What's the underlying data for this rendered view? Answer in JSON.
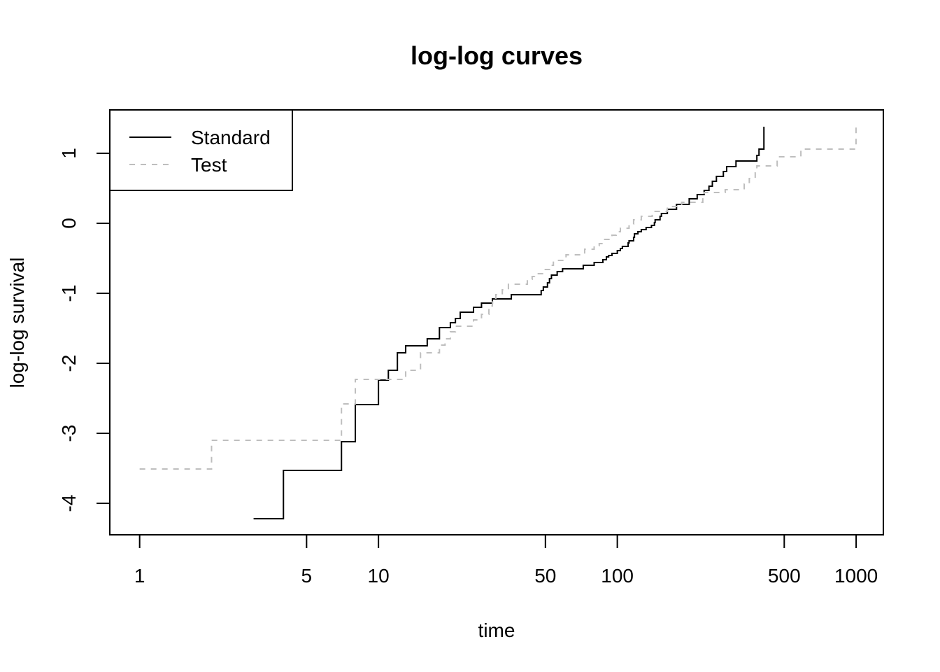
{
  "chart_data": {
    "type": "line",
    "title": "log-log curves",
    "xlabel": "time",
    "ylabel": "log-log survival",
    "x_scale": "log",
    "xlim": [
      0.75,
      1300
    ],
    "ylim": [
      -4.45,
      1.62
    ],
    "x_ticks": [
      1,
      5,
      10,
      50,
      100,
      500,
      1000
    ],
    "x_tick_labels": [
      "1",
      "5",
      "10",
      "50",
      "100",
      "500",
      "1000"
    ],
    "y_ticks": [
      -4,
      -3,
      -2,
      -1,
      0,
      1
    ],
    "y_tick_labels": [
      "-4",
      "-3",
      "-2",
      "-1",
      "0",
      "1"
    ],
    "grid": false,
    "legend_position": "top-left",
    "series": [
      {
        "name": "Standard",
        "color": "#000000",
        "dash": "solid",
        "x": [
          3,
          4,
          7,
          8,
          10,
          11,
          12,
          13,
          16,
          18,
          20,
          21,
          22,
          25,
          27,
          30,
          36,
          48,
          49,
          51,
          52,
          53,
          56,
          59,
          72,
          80,
          87,
          90,
          92,
          95,
          100,
          103,
          105,
          111,
          112,
          117,
          118,
          122,
          126,
          132,
          139,
          143,
          144,
          151,
          153,
          162,
          177,
          200,
          216,
          231,
          242,
          250,
          260,
          278,
          287,
          314,
          384,
          392,
          411,
          411
        ],
        "y": [
          -4.22,
          -3.53,
          -3.12,
          -2.59,
          -2.24,
          -2.1,
          -1.85,
          -1.75,
          -1.65,
          -1.49,
          -1.42,
          -1.36,
          -1.27,
          -1.2,
          -1.14,
          -1.08,
          -1.02,
          -0.96,
          -0.91,
          -0.85,
          -0.79,
          -0.74,
          -0.69,
          -0.65,
          -0.6,
          -0.56,
          -0.52,
          -0.48,
          -0.46,
          -0.43,
          -0.39,
          -0.36,
          -0.33,
          -0.28,
          -0.25,
          -0.2,
          -0.15,
          -0.12,
          -0.09,
          -0.06,
          -0.03,
          0.01,
          0.05,
          0.1,
          0.14,
          0.2,
          0.27,
          0.35,
          0.41,
          0.47,
          0.53,
          0.6,
          0.67,
          0.74,
          0.81,
          0.89,
          0.97,
          1.06,
          1.2,
          1.38
        ]
      },
      {
        "name": "Test",
        "color": "#bebebe",
        "dash": "dashed",
        "x": [
          1,
          2,
          7,
          8,
          13,
          15,
          18,
          19,
          20,
          21,
          25,
          27,
          29,
          30,
          31,
          33,
          35,
          42,
          44,
          45,
          49,
          52,
          54,
          61,
          73,
          80,
          84,
          87,
          95,
          99,
          103,
          112,
          117,
          126,
          140,
          162,
          186,
          228,
          231,
          283,
          340,
          357,
          378,
          384,
          467,
          587,
          999
        ],
        "y": [
          -3.51,
          -3.1,
          -2.58,
          -2.23,
          -2.1,
          -1.85,
          -1.74,
          -1.65,
          -1.55,
          -1.47,
          -1.38,
          -1.3,
          -1.18,
          -1.07,
          -1.02,
          -0.95,
          -0.87,
          -0.8,
          -0.76,
          -0.72,
          -0.66,
          -0.6,
          -0.53,
          -0.45,
          -0.37,
          -0.32,
          -0.29,
          -0.23,
          -0.17,
          -0.12,
          -0.07,
          -0.01,
          0.05,
          0.1,
          0.17,
          0.24,
          0.3,
          0.37,
          0.44,
          0.48,
          0.56,
          0.64,
          0.72,
          0.82,
          0.95,
          1.06,
          1.4
        ]
      }
    ]
  }
}
